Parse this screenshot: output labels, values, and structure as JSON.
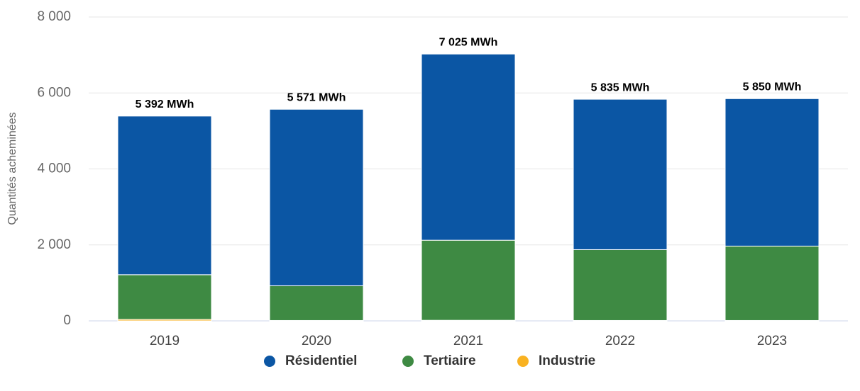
{
  "chart_data": {
    "type": "stacked_bar",
    "y_label": "Quantités acheminées",
    "categories": [
      "2019",
      "2020",
      "2021",
      "2022",
      "2023"
    ],
    "series": [
      {
        "name": "Résidentiel",
        "color": "#0b56a4",
        "values": [
          4177,
          4647,
          4902,
          3960,
          3881
        ]
      },
      {
        "name": "Tertiaire",
        "color": "#3e8a43",
        "values": [
          1175,
          914,
          2108,
          1865,
          1959
        ]
      },
      {
        "name": "Industrie",
        "color": "#f9b221",
        "values": [
          40,
          10,
          15,
          10,
          10
        ]
      }
    ],
    "totals": [
      5392,
      5571,
      7025,
      5835,
      5850
    ],
    "total_labels": [
      "5 392 MWh",
      "5 571 MWh",
      "7 025 MWh",
      "5 835 MWh",
      "5 850 MWh"
    ],
    "ylim": [
      0,
      8000
    ],
    "yticks": [
      0,
      {
        "value": 2000,
        "label": "2 000"
      },
      {
        "value": 4000,
        "label": "4 000"
      },
      {
        "value": 6000,
        "label": "6 000"
      },
      {
        "value": 8000,
        "label": "8 000"
      }
    ],
    "grid": true,
    "legend": "bottom"
  }
}
